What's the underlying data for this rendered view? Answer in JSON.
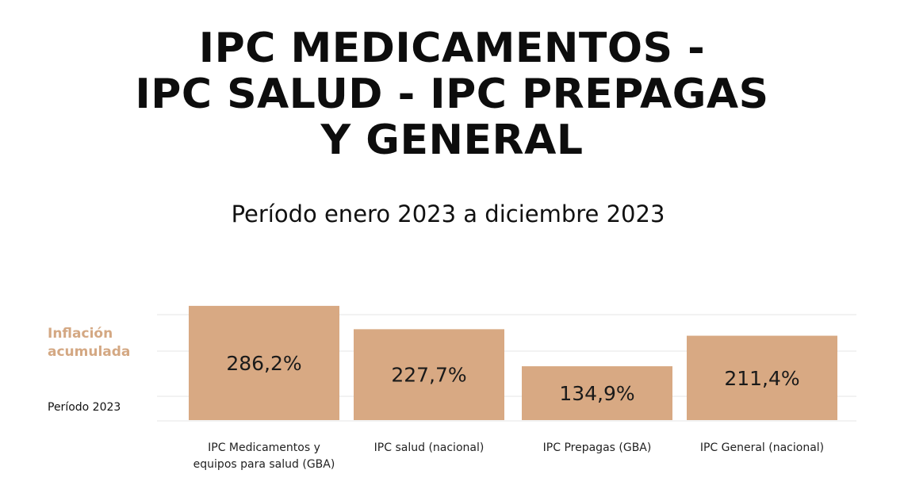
{
  "title_lines": [
    "IPC MEDICAMENTOS -",
    "IPC SALUD - IPC PREPAGAS",
    "Y GENERAL"
  ],
  "subtitle": "Período enero 2023 a diciembre 2023",
  "side_label_lines": [
    "Inflación",
    "acumulada"
  ],
  "side_period": "Período 2023",
  "colors": {
    "bar": "#d8a983",
    "accent_text": "#d4a883",
    "grid": "#e6e6e6"
  },
  "chart_data": {
    "type": "bar",
    "title": "IPC MEDICAMENTOS - IPC SALUD - IPC PREPAGAS Y GENERAL",
    "subtitle": "Período enero 2023 a diciembre 2023",
    "ylabel": "Inflación acumulada",
    "unit": "%",
    "grid": true,
    "legend": "none",
    "categories": [
      [
        "IPC Medicamentos y",
        "equipos para salud (GBA)"
      ],
      [
        "IPC salud (nacional)"
      ],
      [
        "IPC Prepagas (GBA)"
      ],
      [
        "IPC General (nacional)"
      ]
    ],
    "values": [
      286.2,
      227.7,
      134.9,
      211.4
    ],
    "value_labels": [
      "286,2%",
      "227,7%",
      "134,9%",
      "211,4%"
    ]
  }
}
